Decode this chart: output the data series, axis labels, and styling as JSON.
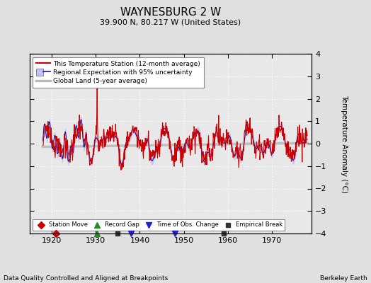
{
  "title": "WAYNESBURG 2 W",
  "subtitle": "39.900 N, 80.217 W (United States)",
  "ylabel": "Temperature Anomaly (°C)",
  "footer_left": "Data Quality Controlled and Aligned at Breakpoints",
  "footer_right": "Berkeley Earth",
  "xlim": [
    1915,
    1979
  ],
  "ylim": [
    -4,
    4
  ],
  "xticks": [
    1920,
    1930,
    1940,
    1950,
    1960,
    1970
  ],
  "yticks": [
    -4,
    -3,
    -2,
    -1,
    0,
    1,
    2,
    3,
    4
  ],
  "red_color": "#CC0000",
  "blue_color": "#1111BB",
  "blue_fill": "#AAAAEE",
  "gray_color": "#BBBBBB",
  "bg_color": "#E8E8E8",
  "fig_bg": "#E0E0E0",
  "legend_labels": [
    "This Temperature Station (12-month average)",
    "Regional Expectation with 95% uncertainty",
    "Global Land (5-year average)"
  ],
  "marker_labels": [
    "Station Move",
    "Record Gap",
    "Time of Obs. Change",
    "Empirical Break"
  ],
  "marker_colors": [
    "#CC0000",
    "#228B22",
    "#2222CC",
    "#333333"
  ],
  "marker_shapes": [
    "D",
    "^",
    "v",
    "s"
  ],
  "station_moves": [
    1921.0
  ],
  "record_gaps": [
    1930.2
  ],
  "obs_changes": [
    1938.0,
    1948.0
  ],
  "emp_breaks": [
    1935.0,
    1959.0
  ],
  "seed": 17
}
